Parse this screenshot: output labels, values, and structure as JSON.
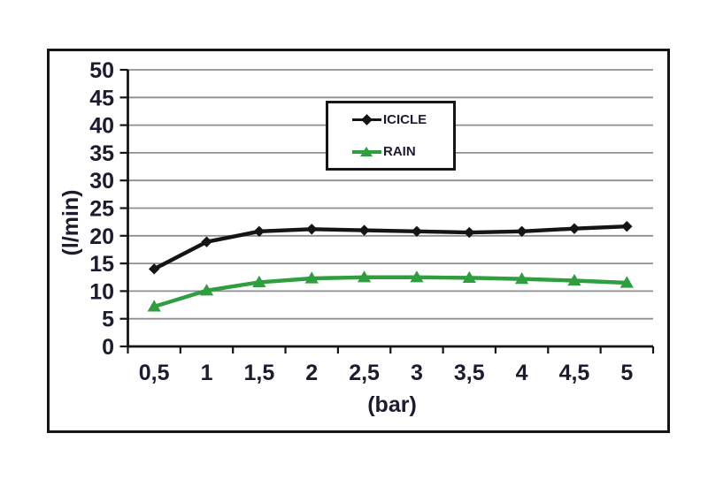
{
  "chart_data": {
    "type": "line",
    "title": "",
    "xlabel": "(bar)",
    "ylabel": "(l/min)",
    "x": [
      0.5,
      1,
      1.5,
      2,
      2.5,
      3,
      3.5,
      4,
      4.5,
      5
    ],
    "x_tick_labels": [
      "0,5",
      "1",
      "1,5",
      "2",
      "2,5",
      "3",
      "3,5",
      "4",
      "4,5",
      "5"
    ],
    "ylim": [
      0,
      50
    ],
    "y_tick_step": 5,
    "y_tick_labels": [
      "0",
      "5",
      "10",
      "15",
      "20",
      "25",
      "30",
      "35",
      "40",
      "45",
      "50"
    ],
    "grid": true,
    "legend_position": "inside-upper-right",
    "series": [
      {
        "name": "ICICLE",
        "marker": "diamond",
        "color": "#141414",
        "values": [
          14.0,
          18.9,
          20.8,
          21.2,
          21.0,
          20.8,
          20.6,
          20.8,
          21.3,
          21.7
        ]
      },
      {
        "name": "RAIN",
        "marker": "triangle-up",
        "color": "#2e9e3e",
        "values": [
          7.2,
          10.1,
          11.6,
          12.3,
          12.5,
          12.5,
          12.4,
          12.2,
          11.9,
          11.5
        ]
      }
    ],
    "colors": {
      "grid": "#8f8f8f",
      "axis": "#141414",
      "text": "#1c1c30",
      "plot_background": "#ffffff",
      "frame_border": "#151515"
    }
  }
}
